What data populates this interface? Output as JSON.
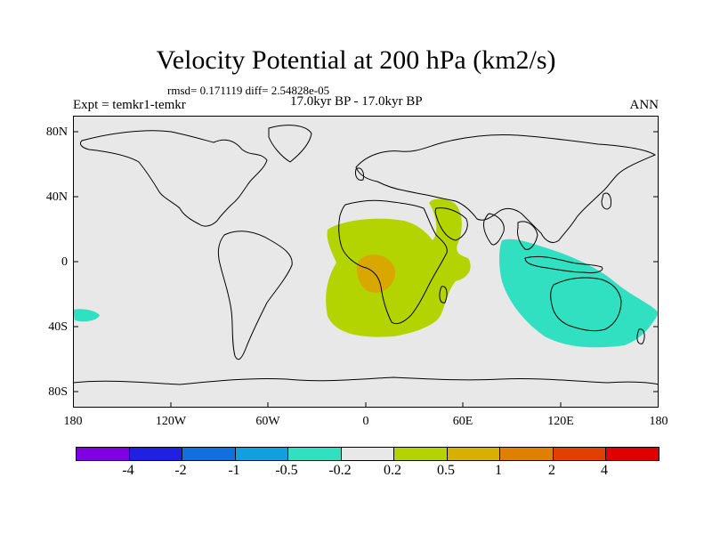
{
  "title": "Velocity Potential at 200 hPa (km2/s)",
  "stats": "rmsd= 0.171119 diff= 2.54828e-05",
  "expt": "Expt = temkr1-temkr",
  "period": "17.0kyr BP - 17.0kyr BP",
  "season": "ANN",
  "map": {
    "projection": "cylindrical equidistant",
    "lon_range": [
      -180,
      180
    ],
    "lat_range": [
      -90,
      90
    ],
    "y_ticks": [
      "80N",
      "40N",
      "0",
      "40S",
      "80S"
    ],
    "x_ticks": [
      "180",
      "120W",
      "60W",
      "0",
      "60E",
      "120E",
      "180"
    ],
    "background_color": "#e8e8e8",
    "anomaly_regions": [
      {
        "label": "Africa / Arabia positive anomaly",
        "range": "0.2 to 0.5",
        "color": "#b4d400"
      },
      {
        "label": "Central Africa core",
        "range": "0.5 to 1",
        "color": "#d8a800"
      },
      {
        "label": "Maritime continent / Australia negative anomaly",
        "range": "-0.5 to -0.2",
        "color": "#30e0c0"
      },
      {
        "label": "South Pacific small negative patch",
        "range": "-0.5 to -0.2",
        "color": "#30e0c0"
      }
    ]
  },
  "colorbar": {
    "colors": [
      "#8000e0",
      "#2020e0",
      "#1070e0",
      "#10a0e0",
      "#30e0c0",
      "#e8e8e8",
      "#b4d400",
      "#d8b000",
      "#e08000",
      "#e04000",
      "#e00000"
    ],
    "labels": [
      "-4",
      "-2",
      "-1",
      "-0.5",
      "-0.2",
      "0.2",
      "0.5",
      "1",
      "2",
      "4"
    ]
  }
}
